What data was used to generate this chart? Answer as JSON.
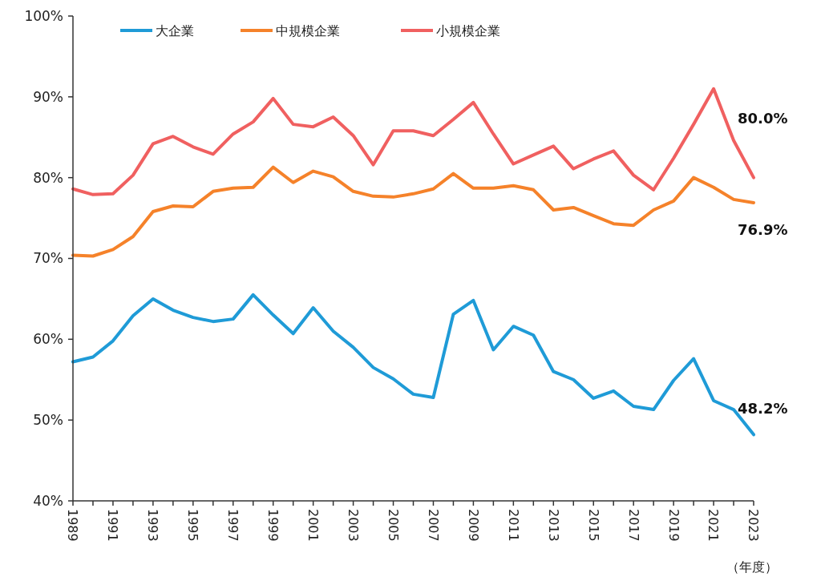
{
  "chart_data": {
    "type": "line",
    "xlabel": "（年度）",
    "legend": "top left",
    "grid": false,
    "marker": "none",
    "line_style": "solid",
    "x": [
      1989,
      1990,
      1991,
      1992,
      1993,
      1994,
      1995,
      1996,
      1997,
      1998,
      1999,
      2000,
      2001,
      2002,
      2003,
      2004,
      2005,
      2006,
      2007,
      2008,
      2009,
      2010,
      2011,
      2012,
      2013,
      2014,
      2015,
      2016,
      2017,
      2018,
      2019,
      2020,
      2021,
      2022,
      2023
    ],
    "xlim": [
      1989,
      2023
    ],
    "xticks": [
      1989,
      {
        "value": 1990,
        "label": null
      },
      1991,
      {
        "value": 1992,
        "label": null
      },
      1993,
      {
        "value": 1994,
        "label": null
      },
      1995,
      {
        "value": 1996,
        "label": null
      },
      1997,
      {
        "value": 1998,
        "label": null
      },
      1999,
      {
        "value": 2000,
        "label": null
      },
      2001,
      {
        "value": 2002,
        "label": null
      },
      2003,
      {
        "value": 2004,
        "label": null
      },
      2005,
      {
        "value": 2006,
        "label": null
      },
      2007,
      {
        "value": 2008,
        "label": null
      },
      2009,
      {
        "value": 2010,
        "label": null
      },
      2011,
      {
        "value": 2012,
        "label": null
      },
      2013,
      {
        "value": 2014,
        "label": null
      },
      2015,
      {
        "value": 2016,
        "label": null
      },
      2017,
      {
        "value": 2018,
        "label": null
      },
      2019,
      {
        "value": 2020,
        "label": null
      },
      2021,
      {
        "value": 2022,
        "label": null
      },
      2023
    ],
    "ylim": [
      40,
      100
    ],
    "yticks": [
      {
        "value": 40,
        "label": "40%"
      },
      {
        "value": 50,
        "label": "50%"
      },
      {
        "value": 60,
        "label": "60%"
      },
      {
        "value": 70,
        "label": "70%"
      },
      {
        "value": 80,
        "label": "80%"
      },
      {
        "value": 90,
        "label": "90%"
      },
      {
        "value": 100,
        "label": "100%"
      }
    ],
    "series": [
      {
        "name": "大企業",
        "color": "#1f9bd7",
        "values": [
          57.2,
          57.8,
          59.8,
          62.9,
          65.0,
          63.6,
          62.7,
          62.2,
          62.5,
          65.5,
          63.0,
          60.7,
          63.9,
          61.0,
          59.0,
          56.5,
          55.1,
          53.2,
          52.8,
          63.1,
          64.8,
          58.7,
          61.6,
          60.5,
          56.0,
          55.0,
          52.7,
          53.6,
          51.7,
          51.3,
          54.9,
          57.6,
          52.4,
          51.3,
          48.2
        ]
      },
      {
        "name": "中規模企業",
        "color": "#f5822a",
        "values": [
          70.4,
          70.3,
          71.1,
          72.7,
          75.8,
          76.5,
          76.4,
          78.3,
          78.7,
          78.8,
          81.3,
          79.4,
          80.8,
          80.1,
          78.3,
          77.7,
          77.6,
          78.0,
          78.6,
          80.5,
          78.7,
          78.7,
          79.0,
          78.5,
          76.0,
          76.3,
          75.3,
          74.3,
          74.1,
          76.0,
          77.1,
          80.0,
          78.8,
          77.3,
          76.9
        ]
      },
      {
        "name": "小規模企業",
        "color": "#f06060",
        "values": [
          78.6,
          77.9,
          78.0,
          80.3,
          84.2,
          85.1,
          83.8,
          82.9,
          85.4,
          86.9,
          89.8,
          86.6,
          86.3,
          87.5,
          85.2,
          81.6,
          85.8,
          85.8,
          85.2,
          87.2,
          89.3,
          85.4,
          81.7,
          82.8,
          83.9,
          81.1,
          82.3,
          83.3,
          80.3,
          78.5,
          82.4,
          86.6,
          91.0,
          84.6,
          80.0
        ]
      }
    ],
    "annotations": [
      "80.0%",
      "76.9%",
      "48.2%"
    ]
  }
}
